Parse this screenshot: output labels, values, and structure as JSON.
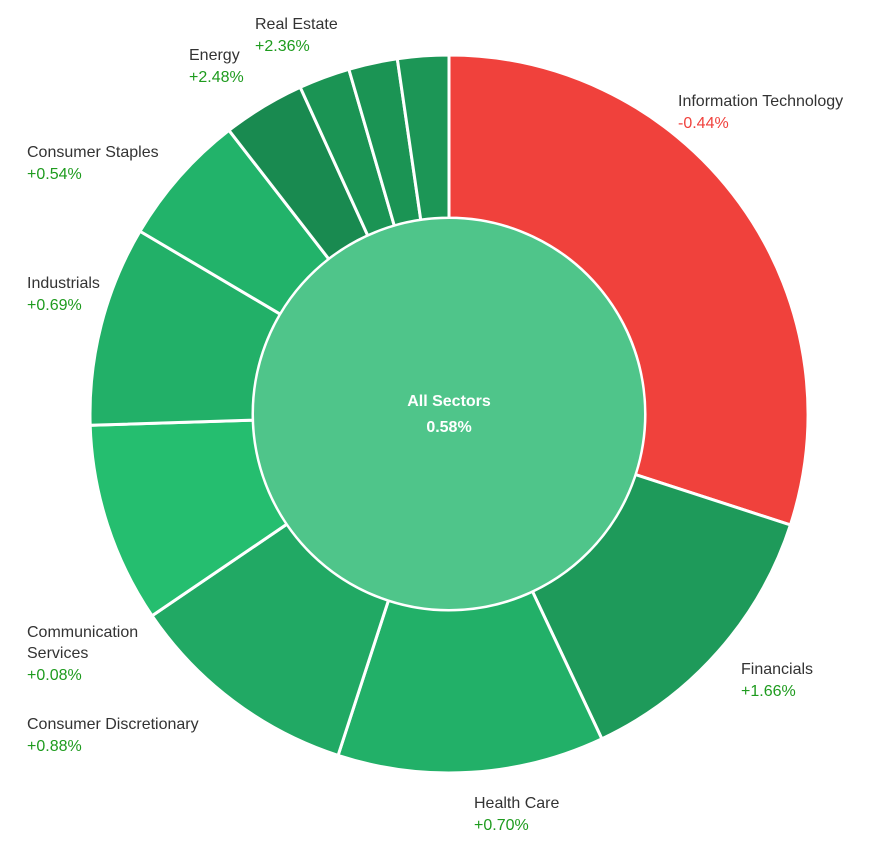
{
  "chart_data": {
    "type": "pie",
    "center": {
      "label": "All Sectors",
      "value": "0.58%"
    },
    "colors": {
      "negative": "#f0413c",
      "center": "#4fc58a",
      "border": "#ffffff",
      "positive_text": "#1e9b1e",
      "negative_text": "#f0413c"
    },
    "segments": [
      {
        "name": "Information Technology",
        "change": "-0.44%",
        "weight": 30,
        "color": "#f0413c"
      },
      {
        "name": "Financials",
        "change": "+1.66%",
        "weight": 13,
        "color": "#1e9a5a"
      },
      {
        "name": "Health Care",
        "change": "+0.70%",
        "weight": 12,
        "color": "#22b068"
      },
      {
        "name": "Consumer Discretionary",
        "change": "+0.88%",
        "weight": 10.5,
        "color": "#21a964"
      },
      {
        "name": "Communication Services",
        "change": "+0.08%",
        "weight": 9,
        "color": "#25be6f"
      },
      {
        "name": "Industrials",
        "change": "+0.69%",
        "weight": 9,
        "color": "#22b068"
      },
      {
        "name": "Consumer Staples",
        "change": "+0.54%",
        "weight": 6,
        "color": "#22b36a"
      },
      {
        "name": "Energy",
        "change": "+2.48%",
        "weight": 3.7,
        "color": "#198a50"
      },
      {
        "name": "",
        "change": "",
        "weight": 2.3,
        "color": "#1b9454"
      },
      {
        "name": "",
        "change": "",
        "weight": 2.2,
        "color": "#1b9454"
      },
      {
        "name": "Real Estate",
        "change": "+2.36%",
        "weight": 2.3,
        "color": "#1c9656"
      }
    ]
  }
}
